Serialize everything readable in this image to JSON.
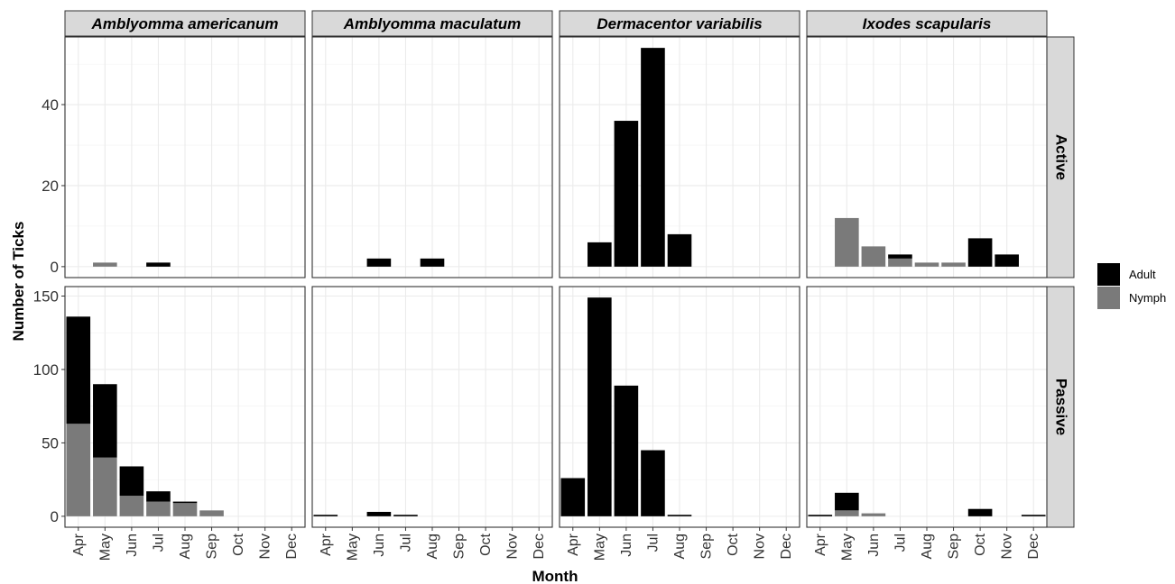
{
  "chart_data": {
    "type": "bar",
    "stacked": true,
    "xlabel": "Month",
    "ylabel": "Number of Ticks",
    "months": [
      "Apr",
      "May",
      "Jun",
      "Jul",
      "Aug",
      "Sep",
      "Oct",
      "Nov",
      "Dec"
    ],
    "species": [
      "Amblyomma americanum",
      "Amblyomma maculatum",
      "Dermacentor variabilis",
      "Ixodes scapularis"
    ],
    "methods": [
      "Active",
      "Passive"
    ],
    "legend": {
      "position": "right",
      "entries": [
        {
          "name": "Adult",
          "color": "#000000"
        },
        {
          "name": "Nymph",
          "color": "#7a7a7a"
        }
      ]
    },
    "rows": [
      {
        "method": "Active",
        "ylim": [
          -2.7,
          56.7
        ],
        "yticks": [
          0,
          20,
          40
        ],
        "panels": [
          {
            "adult": [
              0,
              0,
              0,
              1,
              0,
              0,
              0,
              0,
              0
            ],
            "nymph": [
              0,
              1,
              0,
              0,
              0,
              0,
              0,
              0,
              0
            ]
          },
          {
            "adult": [
              0,
              0,
              2,
              0,
              2,
              0,
              0,
              0,
              0
            ],
            "nymph": [
              0,
              0,
              0,
              0,
              0,
              0,
              0,
              0,
              0
            ]
          },
          {
            "adult": [
              0,
              6,
              36,
              54,
              8,
              0,
              0,
              0,
              0
            ],
            "nymph": [
              0,
              0,
              0,
              0,
              0,
              0,
              0,
              0,
              0
            ]
          },
          {
            "adult": [
              0,
              0,
              0,
              1,
              0,
              0,
              7,
              3,
              0
            ],
            "nymph": [
              0,
              12,
              5,
              2,
              1,
              1,
              0,
              0,
              0
            ]
          }
        ]
      },
      {
        "method": "Passive",
        "ylim": [
          -7.45,
          156.45
        ],
        "yticks": [
          0,
          50,
          100,
          150
        ],
        "panels": [
          {
            "adult": [
              73,
              50,
              20,
              7,
              1,
              0,
              0,
              0,
              0
            ],
            "nymph": [
              63,
              40,
              14,
              10,
              9,
              4,
              0,
              0,
              0
            ]
          },
          {
            "adult": [
              1,
              0,
              3,
              1,
              0,
              0,
              0,
              0,
              0
            ],
            "nymph": [
              0,
              0,
              0,
              0,
              0,
              0,
              0,
              0,
              0
            ]
          },
          {
            "adult": [
              26,
              149,
              89,
              45,
              1,
              0,
              0,
              0,
              0
            ],
            "nymph": [
              0,
              0,
              0,
              0,
              0,
              0,
              0,
              0,
              0
            ]
          },
          {
            "adult": [
              1,
              12,
              0,
              0,
              0,
              0,
              5,
              0,
              1
            ],
            "nymph": [
              0,
              4,
              2,
              0,
              0,
              0,
              0,
              0,
              0
            ]
          }
        ]
      }
    ],
    "grid": true
  }
}
